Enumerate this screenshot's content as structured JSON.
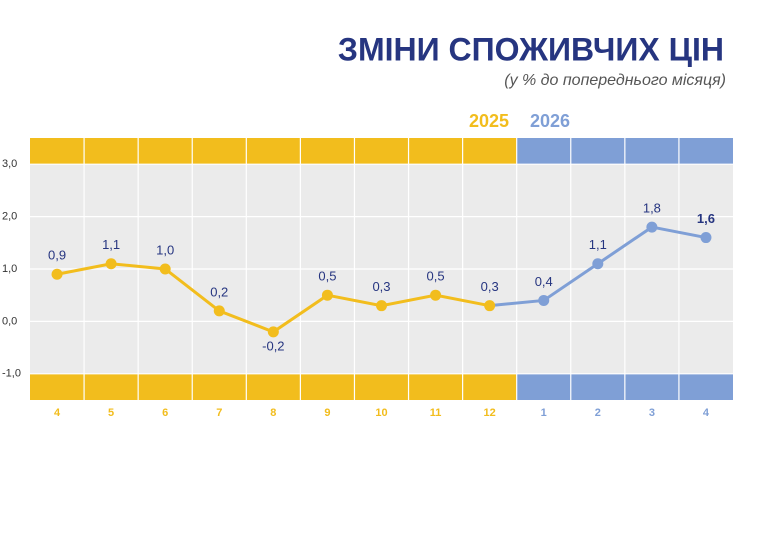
{
  "chart_data": {
    "type": "line",
    "title": "ЗМІНИ СПОЖИВЧИХ ЦІН",
    "subtitle": "(у % до попереднього місяця)",
    "categories": [
      "4",
      "5",
      "6",
      "7",
      "8",
      "9",
      "10",
      "11",
      "12",
      "1",
      "2",
      "3",
      "4"
    ],
    "series": [
      {
        "name": "2025",
        "color": "#f2bd1d",
        "values": [
          0.9,
          1.1,
          1.0,
          0.2,
          -0.2,
          0.5,
          0.3,
          0.5,
          0.3,
          null,
          null,
          null,
          null
        ],
        "value_labels": [
          "0,9",
          "1,1",
          "1,0",
          "0,2",
          "-0,2",
          "0,5",
          "0,3",
          "0,5",
          "0,3",
          null,
          null,
          null,
          null
        ]
      },
      {
        "name": "2026",
        "color": "#7f9fd6",
        "values": [
          null,
          null,
          null,
          null,
          null,
          null,
          null,
          null,
          null,
          0.4,
          1.1,
          1.8,
          1.6
        ],
        "value_labels": [
          null,
          null,
          null,
          null,
          null,
          null,
          null,
          null,
          null,
          "0,4",
          "1,1",
          "1,8",
          "1,6"
        ]
      }
    ],
    "ylim": [
      -1.5,
      3.5
    ],
    "yticks": [
      {
        "value": -1,
        "label": "-1,0"
      },
      {
        "value": 0,
        "label": "0,0"
      },
      {
        "value": 1,
        "label": "1,0"
      },
      {
        "value": 2,
        "label": "2,0"
      },
      {
        "value": 3,
        "label": "3,0"
      }
    ],
    "grid": true
  }
}
